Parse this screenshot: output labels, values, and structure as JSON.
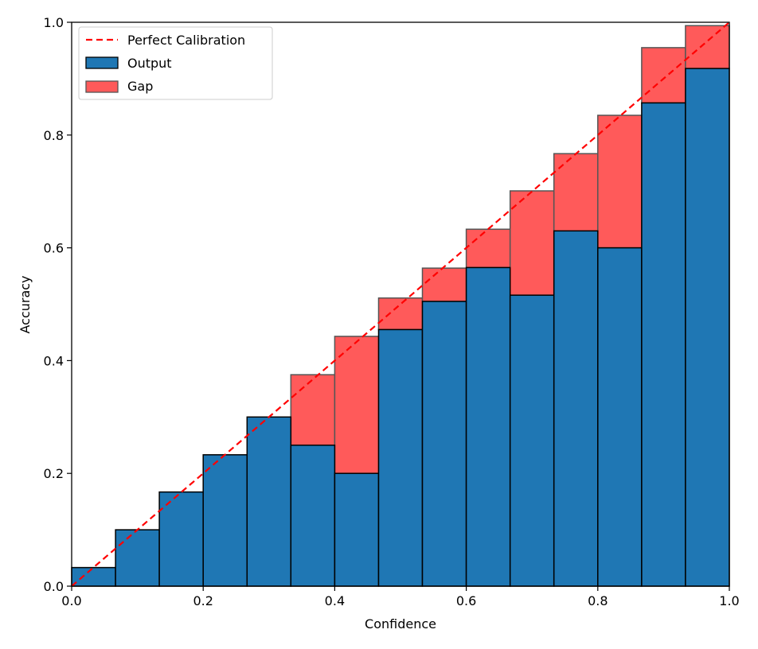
{
  "chart_data": {
    "type": "bar",
    "title": "",
    "xlabel": "Confidence",
    "ylabel": "Accuracy",
    "xlim": [
      0,
      1
    ],
    "ylim": [
      0,
      1
    ],
    "xticks": [
      "0.0",
      "0.2",
      "0.4",
      "0.6",
      "0.8",
      "1.0"
    ],
    "yticks": [
      "0.0",
      "0.2",
      "0.4",
      "0.6",
      "0.8",
      "1.0"
    ],
    "bins": 15,
    "bin_edges": [
      0,
      0.0667,
      0.1333,
      0.2,
      0.2667,
      0.3333,
      0.4,
      0.4667,
      0.5333,
      0.6,
      0.6667,
      0.7333,
      0.8,
      0.8667,
      0.9333,
      1.0
    ],
    "series": [
      {
        "name": "Output",
        "color": "#1f77b4",
        "values": [
          0.033,
          0.1,
          0.167,
          0.233,
          0.3,
          0.25,
          0.2,
          0.455,
          0.505,
          0.565,
          0.516,
          0.63,
          0.6,
          0.857,
          0.918
        ]
      },
      {
        "name": "Gap",
        "color": "#ff5a5a",
        "tops": [
          0.033,
          0.1,
          0.167,
          0.233,
          0.3,
          0.375,
          0.443,
          0.511,
          0.564,
          0.633,
          0.701,
          0.767,
          0.835,
          0.955,
          0.994
        ]
      }
    ],
    "reference_line": {
      "name": "Perfect Calibration",
      "color": "#ff0000",
      "points": [
        [
          0,
          0
        ],
        [
          1,
          1
        ]
      ]
    },
    "legend": {
      "position": "top-left",
      "entries": [
        "Perfect Calibration",
        "Output",
        "Gap"
      ]
    }
  }
}
